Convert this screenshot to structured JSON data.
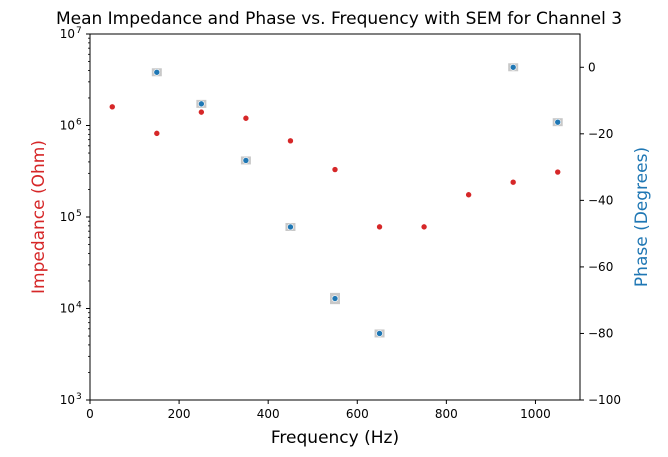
{
  "chart_data": {
    "type": "scatter",
    "title": "Mean Impedance and Phase vs. Frequency with SEM for Channel 3",
    "xlabel": "Frequency (Hz)",
    "ylabel_left": "Impedance (Ohm)",
    "ylabel_right": "Phase (Degrees)",
    "xlim": [
      0,
      1100
    ],
    "ylim_left": [
      1000,
      10000000
    ],
    "ylim_right": [
      -100,
      10
    ],
    "left_scale": "log",
    "grid": false,
    "x_ticks": [
      "0",
      "200",
      "400",
      "600",
      "800",
      "1000"
    ],
    "x_tick_values": [
      0,
      200,
      400,
      600,
      800,
      1000
    ],
    "left_ticks": [
      {
        "value": 1000,
        "base": "10",
        "exp": "3"
      },
      {
        "value": 10000,
        "base": "10",
        "exp": "4"
      },
      {
        "value": 100000,
        "base": "10",
        "exp": "5"
      },
      {
        "value": 1000000,
        "base": "10",
        "exp": "6"
      },
      {
        "value": 10000000,
        "base": "10",
        "exp": "7"
      }
    ],
    "right_ticks": [
      "0",
      "−20",
      "−40",
      "−60",
      "−80",
      "−100"
    ],
    "right_tick_values": [
      0,
      -20,
      -40,
      -60,
      -80,
      -100
    ],
    "series": [
      {
        "axis": "left",
        "color": "#d62728",
        "x": [
          50,
          150,
          250,
          350,
          450,
          550,
          650,
          750,
          850,
          950,
          1050
        ],
        "y": [
          1600000,
          820000,
          1400000,
          1200000,
          680000,
          330000,
          78000,
          78000,
          175000,
          240000,
          310000
        ]
      },
      {
        "axis": "right",
        "color": "#1f77b4",
        "sem_color": "#c8c8c8",
        "x": [
          150,
          250,
          350,
          450,
          550,
          650,
          950,
          1050
        ],
        "y": [
          -1.5,
          -11,
          -28,
          -48,
          -69.5,
          -80,
          0,
          -16.5
        ],
        "sem": [
          1.0,
          0.6,
          0.3,
          0.5,
          1.7,
          0.9,
          0.5,
          0.4
        ]
      }
    ]
  }
}
